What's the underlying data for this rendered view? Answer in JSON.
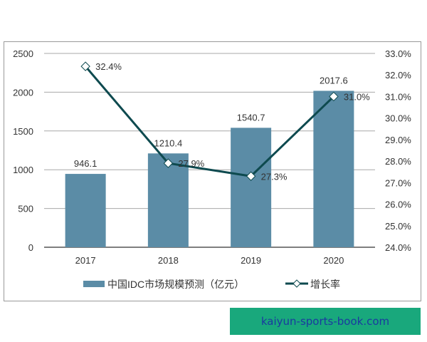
{
  "chart_data": {
    "type": "bar+line",
    "title": "",
    "categories": [
      "2017",
      "2018",
      "2019",
      "2020"
    ],
    "series": [
      {
        "name": "中国IDC市场规模预测（亿元）",
        "type": "bar",
        "axis": "left",
        "color": "#5b8ca6",
        "values": [
          946.1,
          1210.4,
          1540.7,
          2017.6
        ],
        "labels": [
          "946.1",
          "1210.4",
          "1540.7",
          "2017.6"
        ]
      },
      {
        "name": "增长率",
        "type": "line",
        "axis": "right",
        "color": "#0e4a4f",
        "marker": "diamond",
        "values": [
          32.4,
          27.9,
          27.3,
          31.0
        ],
        "labels": [
          "32.4%",
          "27.9%",
          "27.3%",
          "31.0%"
        ]
      }
    ],
    "left_axis": {
      "ylim": [
        0,
        2500
      ],
      "ticks": [
        "0",
        "500",
        "1000",
        "1500",
        "2000",
        "2500"
      ]
    },
    "right_axis": {
      "ylim": [
        24.0,
        33.0
      ],
      "ticks": [
        "24.0%",
        "25.0%",
        "26.0%",
        "27.0%",
        "28.0%",
        "29.0%",
        "30.0%",
        "31.0%",
        "32.0%",
        "33.0%"
      ]
    },
    "grid": true,
    "legend_position": "bottom",
    "xlabel": "",
    "ylabel": ""
  },
  "legend": {
    "bar_label": "中国IDC市场规模预测（亿元）",
    "line_label": "增长率"
  },
  "watermark": {
    "text": "kaiyun-sports-book.com",
    "bg": "#19a87c",
    "color": "#1a3aa0"
  }
}
